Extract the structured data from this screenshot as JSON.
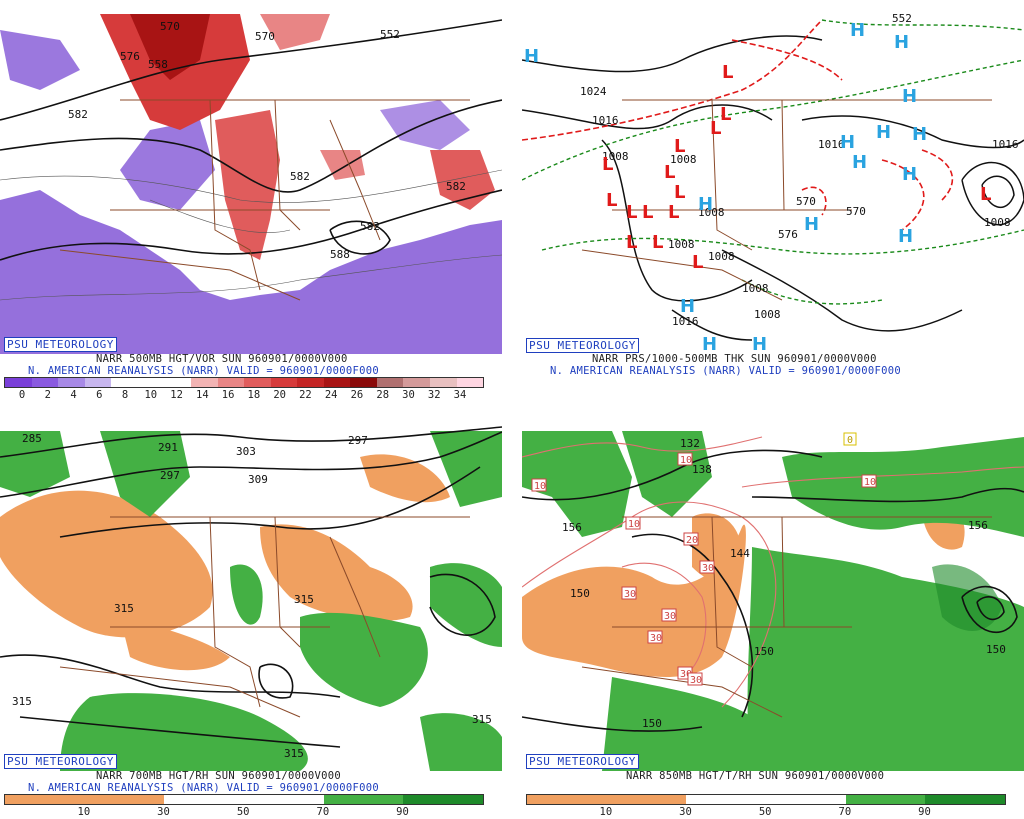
{
  "panels": {
    "p1": {
      "title_line1": "NARR 500MB HGT/VOR SUN 960901/0000V000",
      "title_line2": "N. AMERICAN REANALYSIS (NARR) VALID = 960901/0000F000",
      "badge": "PSU METEOROLOGY",
      "scale_ticks": [
        "0",
        "2",
        "4",
        "6",
        "8",
        "10",
        "12",
        "14",
        "16",
        "18",
        "20",
        "22",
        "24",
        "26",
        "28",
        "30",
        "32",
        "34"
      ],
      "scale_colors": [
        "#7a3fd9",
        "#8a5ae0",
        "#a789e6",
        "#c8b7ef",
        "#ffffff",
        "#ffffff",
        "#ffffff",
        "#f2b3b3",
        "#e88585",
        "#e05c5c",
        "#d63b3b",
        "#c42525",
        "#a81414",
        "#8a0a0a",
        "#b07070",
        "#d49a9a",
        "#e8c0c0",
        "#ffd6e2"
      ],
      "contour_labels": [
        "558",
        "570",
        "582",
        "582",
        "588",
        "582",
        "582",
        "552",
        "570",
        "576"
      ]
    },
    "p2": {
      "title_line1": "NARR PRS/1000-500MB THK SUN 960901/0000V000",
      "title_line2": "N. AMERICAN REANALYSIS (NARR) VALID = 960901/0000F000",
      "badge": "PSU METEOROLOGY",
      "contour_labels": [
        "1024",
        "1016",
        "1008",
        "1008",
        "1008",
        "1008",
        "1008",
        "1016",
        "1008",
        "1016",
        "1008",
        "1016",
        "570",
        "570",
        "576",
        "552",
        "1008"
      ]
    },
    "p3": {
      "title_line1": "NARR 700MB HGT/RH SUN 960901/0000V000",
      "title_line2": "N. AMERICAN REANALYSIS (NARR) VALID = 960901/0000F000",
      "badge": "PSU METEOROLOGY",
      "scale_ticks": [
        "10",
        "30",
        "50",
        "70",
        "90"
      ],
      "scale_colors": [
        "#f0a060",
        "#f0a060",
        "#ffffff",
        "#ffffff",
        "#44b044",
        "#1e8a2a"
      ],
      "contour_labels": [
        "291",
        "297",
        "303",
        "309",
        "297",
        "315",
        "315",
        "315",
        "315",
        "315",
        "285"
      ]
    },
    "p4": {
      "title_line1": "NARR 850MB HGT/T/RH SUN 960901/0000V000",
      "title_line2": "N. AMERICAN REANALYSIS (NARR) VALID = 960901/0000F000",
      "badge": "PSU METEOROLOGY",
      "scale_ticks": [
        "10",
        "30",
        "50",
        "70",
        "90"
      ],
      "scale_colors": [
        "#f0a060",
        "#f0a060",
        "#ffffff",
        "#ffffff",
        "#44b044",
        "#1e8a2a"
      ],
      "contour_labels": [
        "132",
        "138",
        "156",
        "150",
        "144",
        "150",
        "150",
        "156",
        "150"
      ],
      "temp_labels": [
        "10",
        "10",
        "10",
        "20",
        "30",
        "30",
        "30",
        "30",
        "30",
        "30",
        "10",
        "0"
      ]
    }
  }
}
